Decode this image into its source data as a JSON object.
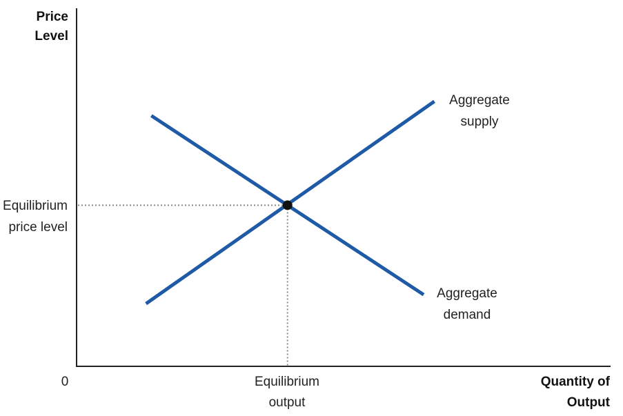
{
  "chart_data": {
    "type": "line",
    "title": "",
    "ylabel": [
      "Price",
      "Level"
    ],
    "xlabel": [
      "Quantity of",
      "Output"
    ],
    "origin_label": "0",
    "x_range": [
      0,
      100
    ],
    "y_range": [
      0,
      100
    ],
    "grid": false,
    "series": [
      {
        "name": "Aggregate supply",
        "label_lines": [
          "Aggregate",
          "supply"
        ],
        "color": "#1f5aa6",
        "points": [
          [
            13,
            17.5
          ],
          [
            67,
            74
          ]
        ]
      },
      {
        "name": "Aggregate demand",
        "label_lines": [
          "Aggregate",
          "demand"
        ],
        "color": "#1f5aa6",
        "points": [
          [
            14,
            70
          ],
          [
            65,
            20
          ]
        ]
      }
    ],
    "equilibrium": {
      "x": 39.5,
      "y": 45,
      "x_label_lines": [
        "Equilibrium",
        "output"
      ],
      "y_label_lines": [
        "Equilibrium",
        "price level"
      ]
    }
  }
}
